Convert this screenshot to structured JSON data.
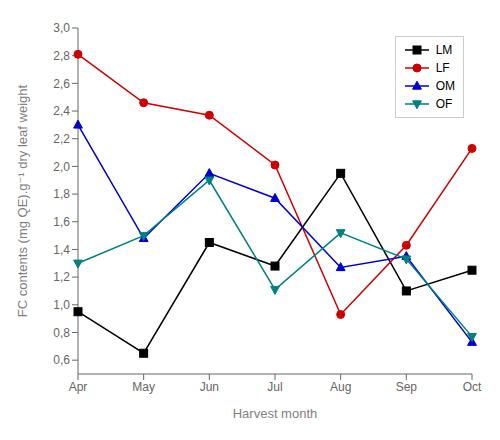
{
  "chart_data": {
    "type": "line",
    "xlabel": "Harvest month",
    "ylabel": "FC contents (mg QE).g⁻¹ dry leaf weight",
    "categories": [
      "Apr",
      "May",
      "Jun",
      "Jul",
      "Aug",
      "Sep",
      "Oct"
    ],
    "series": [
      {
        "name": "LM",
        "color": "#000000",
        "marker": "square",
        "values": [
          0.95,
          0.65,
          1.45,
          1.28,
          1.95,
          1.1,
          1.25
        ]
      },
      {
        "name": "LF",
        "color": "#cc0000",
        "marker": "circle",
        "values": [
          2.81,
          2.46,
          2.37,
          2.01,
          0.93,
          1.43,
          2.13
        ]
      },
      {
        "name": "OM",
        "color": "#0000cc",
        "marker": "triangle-up",
        "values": [
          2.3,
          1.48,
          1.95,
          1.77,
          1.27,
          1.35,
          0.73
        ]
      },
      {
        "name": "OF",
        "color": "#008080",
        "marker": "triangle-down",
        "values": [
          1.3,
          1.5,
          1.9,
          1.11,
          1.52,
          1.33,
          0.77
        ]
      }
    ],
    "ylim": [
      0.5,
      3.0
    ],
    "yticks": [
      {
        "value": 0.6,
        "label": "0,6"
      },
      {
        "value": 0.8,
        "label": "0,8"
      },
      {
        "value": 1.0,
        "label": "1,0"
      },
      {
        "value": 1.2,
        "label": "1,2"
      },
      {
        "value": 1.4,
        "label": "1,4"
      },
      {
        "value": 1.6,
        "label": "1,6"
      },
      {
        "value": 1.8,
        "label": "1,8"
      },
      {
        "value": 2.0,
        "label": "2,0"
      },
      {
        "value": 2.2,
        "label": "2,2"
      },
      {
        "value": 2.4,
        "label": "2,4"
      },
      {
        "value": 2.6,
        "label": "2,6"
      },
      {
        "value": 2.8,
        "label": "2,8"
      },
      {
        "value": 3.0,
        "label": "3,0"
      }
    ],
    "legend": "upper right",
    "grid": false
  }
}
